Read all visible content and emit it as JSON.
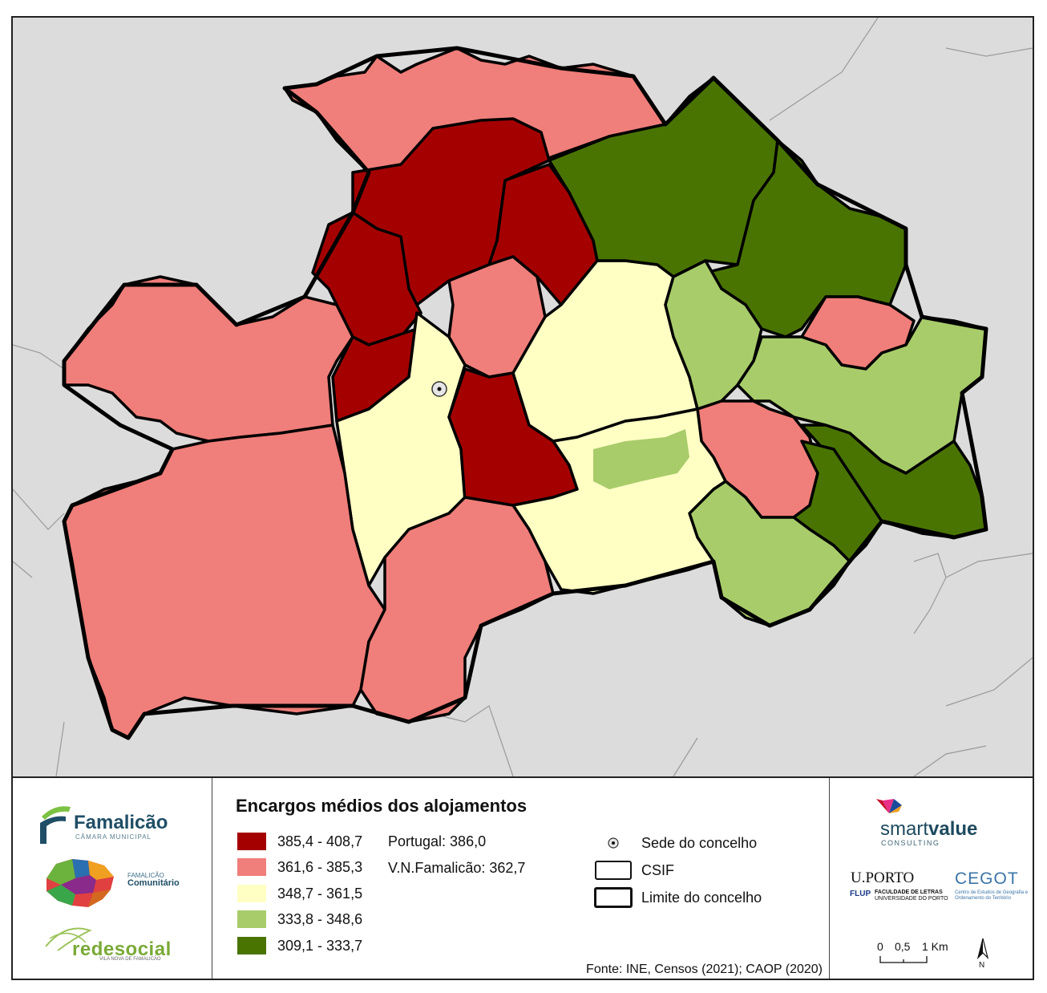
{
  "legend": {
    "title": "Encargos médios dos alojamentos",
    "classes": [
      {
        "label": "385,4 - 408,7",
        "color": "#a50000"
      },
      {
        "label": "361,6 - 385,3",
        "color": "#f07e7a"
      },
      {
        "label": "348,7 - 361,5",
        "color": "#ffffc4"
      },
      {
        "label": "333,8 - 348,6",
        "color": "#a8cc6a"
      },
      {
        "label": "309,1 - 333,7",
        "color": "#4a7401"
      }
    ],
    "stats": [
      "Portugal: 386,0",
      "V.N.Famalicão: 362,7"
    ],
    "symbols": {
      "sede": "Sede do concelho",
      "csif": "CSIF",
      "limite": "Limite do concelho"
    },
    "source": "Fonte: INE, Censos (2021); CAOP (2020)"
  },
  "logos": {
    "famalicao": {
      "name": "Famalicão",
      "sub": "CÂMARA MUNICIPAL"
    },
    "comunitario": {
      "line1": "FAMALICÃO",
      "line2": "Comunitário"
    },
    "redesocial": {
      "name": "redesocial",
      "sub": "VILA NOVA DE FAMALICÃO"
    },
    "smartvalue": {
      "name_light": "smart",
      "name_bold": "value",
      "sub": "CONSULTING"
    },
    "uporto": {
      "name": "U.PORTO",
      "flup": "FLUP",
      "fac1": "FACULDADE DE LETRAS",
      "fac2": "UNIVERSIDADE DO PORTO"
    },
    "cegot": {
      "name": "CEGOT",
      "sub": "Centro de Estudos de Geografia e Ordenamento do Território"
    }
  },
  "scale": {
    "labels": [
      "0",
      "0,5",
      "1 Km"
    ],
    "north": "N"
  },
  "colors": {
    "background": "#dcdcdc",
    "outline": "#000000"
  }
}
